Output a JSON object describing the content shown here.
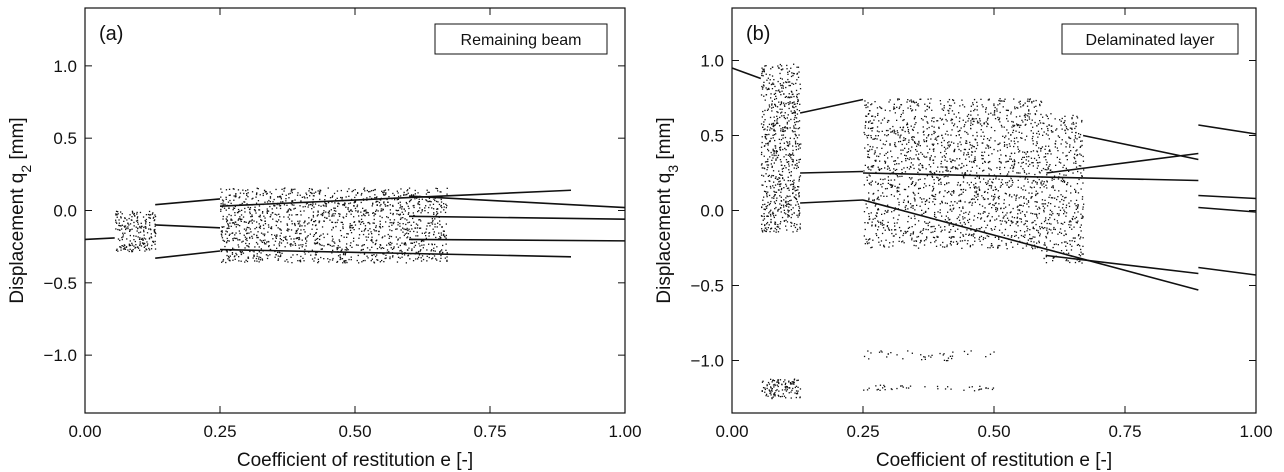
{
  "chart_data": [
    {
      "type": "scatter",
      "panel_label": "(a)",
      "legend": "Remaining beam",
      "xlabel": "Coefficient of restitution e [-]",
      "ylabel": "Displacement q",
      "ylabel_sub": "2",
      "ylabel_unit": " [mm]",
      "xlim": [
        0,
        1
      ],
      "ylim": [
        -1.4,
        1.4
      ],
      "xticks": [
        0.0,
        0.25,
        0.5,
        0.75,
        1.0
      ],
      "xtick_labels": [
        "0.00",
        "0.25",
        "0.50",
        "0.75",
        "1.00"
      ],
      "yticks": [
        1.0,
        0.5,
        0.0,
        -0.5,
        -1.0
      ],
      "ytick_labels": [
        "1.0",
        "0.5",
        "0.0",
        "−0.5",
        "−1.0"
      ],
      "branches": [
        {
          "x": [
            0.0,
            0.055
          ],
          "y": [
            -0.2,
            -0.19
          ]
        },
        {
          "x": [
            0.13,
            0.25
          ],
          "y": [
            0.04,
            0.08
          ]
        },
        {
          "x": [
            0.13,
            0.25
          ],
          "y": [
            -0.33,
            -0.28
          ]
        },
        {
          "x": [
            0.13,
            0.25
          ],
          "y": [
            -0.1,
            -0.12
          ]
        },
        {
          "x": [
            0.25,
            0.9
          ],
          "y": [
            0.03,
            0.14
          ]
        },
        {
          "x": [
            0.25,
            0.9
          ],
          "y": [
            -0.27,
            -0.32
          ]
        },
        {
          "x": [
            0.6,
            1.0
          ],
          "y": [
            0.1,
            0.02
          ]
        },
        {
          "x": [
            0.6,
            1.0
          ],
          "y": [
            -0.04,
            -0.06
          ]
        },
        {
          "x": [
            0.6,
            1.0
          ],
          "y": [
            -0.2,
            -0.21
          ]
        }
      ],
      "scatter_regions": [
        {
          "x": [
            0.055,
            0.13
          ],
          "y": [
            -0.28,
            0.0
          ],
          "density": 220
        },
        {
          "x": [
            0.25,
            0.67
          ],
          "y": [
            -0.36,
            0.16
          ],
          "density": 1500
        }
      ]
    },
    {
      "type": "scatter",
      "panel_label": "(b)",
      "legend": "Delaminated layer",
      "xlabel": "Coefficient of restitution e [-]",
      "ylabel": "Displacement q",
      "ylabel_sub": "3",
      "ylabel_unit": " [mm]",
      "xlim": [
        0,
        1
      ],
      "ylim": [
        -1.35,
        1.35
      ],
      "xticks": [
        0.0,
        0.25,
        0.5,
        0.75,
        1.0
      ],
      "xtick_labels": [
        "0.00",
        "0.25",
        "0.50",
        "0.75",
        "1.00"
      ],
      "yticks": [
        1.0,
        0.5,
        0.0,
        -0.5,
        -1.0
      ],
      "ytick_labels": [
        "1.0",
        "0.5",
        "0.0",
        "−0.5",
        "−1.0"
      ],
      "branches": [
        {
          "x": [
            0.0,
            0.055
          ],
          "y": [
            0.95,
            0.88
          ]
        },
        {
          "x": [
            0.13,
            0.25
          ],
          "y": [
            0.65,
            0.74
          ]
        },
        {
          "x": [
            0.13,
            0.25
          ],
          "y": [
            0.25,
            0.26
          ]
        },
        {
          "x": [
            0.13,
            0.25
          ],
          "y": [
            0.05,
            0.07
          ]
        },
        {
          "x": [
            0.25,
            0.89
          ],
          "y": [
            0.07,
            -0.53
          ]
        },
        {
          "x": [
            0.25,
            0.89
          ],
          "y": [
            0.25,
            0.2
          ]
        },
        {
          "x": [
            0.6,
            0.89
          ],
          "y": [
            0.25,
            0.38
          ]
        },
        {
          "x": [
            0.6,
            0.89
          ],
          "y": [
            -0.3,
            -0.42
          ]
        },
        {
          "x": [
            0.67,
            0.89
          ],
          "y": [
            0.5,
            0.34
          ]
        },
        {
          "x": [
            0.89,
            1.0
          ],
          "y": [
            0.57,
            0.51
          ]
        },
        {
          "x": [
            0.89,
            1.0
          ],
          "y": [
            0.1,
            0.08
          ]
        },
        {
          "x": [
            0.89,
            1.0
          ],
          "y": [
            0.02,
            -0.01
          ]
        },
        {
          "x": [
            0.89,
            1.0
          ],
          "y": [
            -0.38,
            -0.43
          ]
        }
      ],
      "scatter_regions": [
        {
          "x": [
            0.055,
            0.13
          ],
          "y": [
            -0.14,
            0.98
          ],
          "density": 700
        },
        {
          "x": [
            0.055,
            0.13
          ],
          "y": [
            -1.25,
            -1.12
          ],
          "density": 120
        },
        {
          "x": [
            0.25,
            0.59
          ],
          "y": [
            -0.25,
            0.75
          ],
          "density": 1800
        },
        {
          "x": [
            0.59,
            0.67
          ],
          "y": [
            -0.35,
            0.65
          ],
          "density": 400
        },
        {
          "x": [
            0.25,
            0.5
          ],
          "y": [
            -1.0,
            -0.93
          ],
          "density": 40
        },
        {
          "x": [
            0.25,
            0.5
          ],
          "y": [
            -1.2,
            -1.16
          ],
          "density": 40
        }
      ]
    }
  ]
}
